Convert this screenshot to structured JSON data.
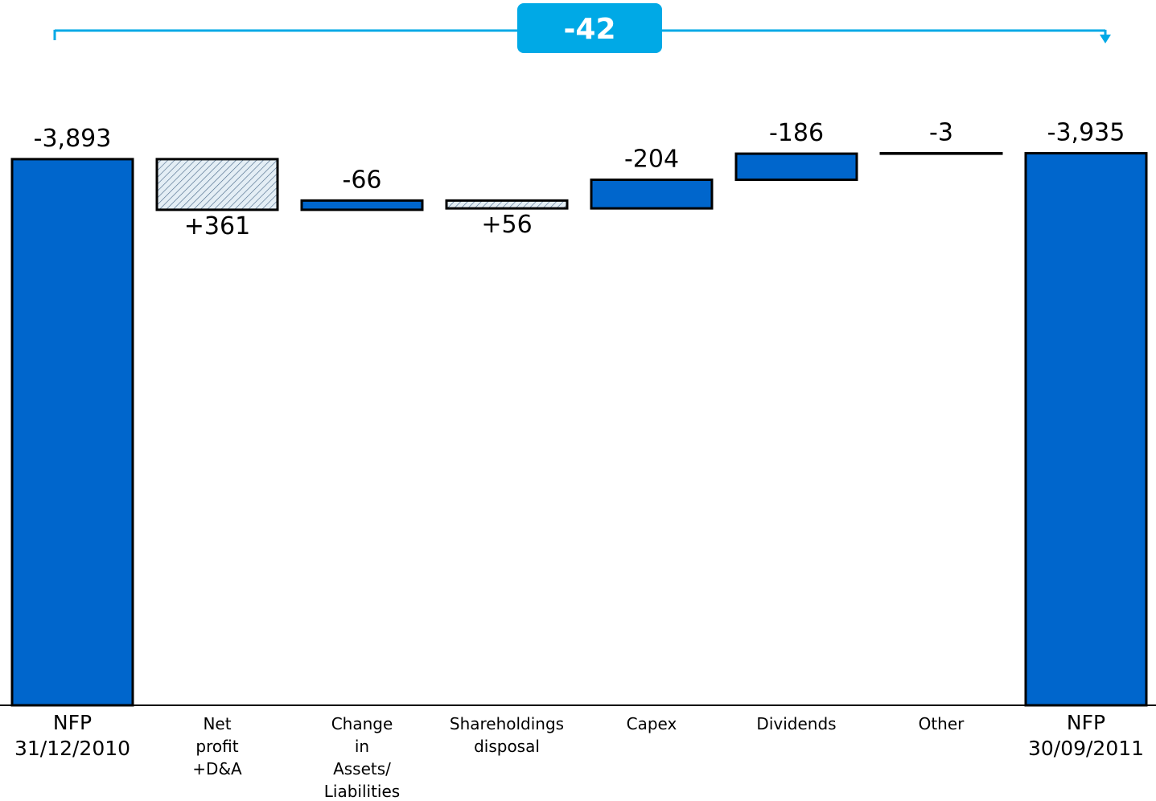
{
  "chart_data": {
    "type": "waterfall",
    "categories": [
      [
        "NFP",
        "31/12/2010"
      ],
      [
        "Net",
        "profit",
        "+D&A"
      ],
      [
        "Change",
        "in",
        "Assets/",
        "Liabilities"
      ],
      [
        "Shareholdings",
        "disposal"
      ],
      [
        "Capex"
      ],
      [
        "Dividends"
      ],
      [
        "Other"
      ],
      [
        "NFP",
        "30/09/2011"
      ]
    ],
    "values": [
      -3893,
      361,
      -66,
      56,
      -204,
      -186,
      -3,
      -3935
    ],
    "value_labels": [
      "-3,893",
      "+361",
      "-66",
      "+56",
      "-204",
      "-186",
      "-3",
      "-3,935"
    ],
    "color": "#0066cc",
    "ylim": [
      0,
      -4500
    ],
    "total_change": -42,
    "total_change_color": "#00a9e6"
  }
}
